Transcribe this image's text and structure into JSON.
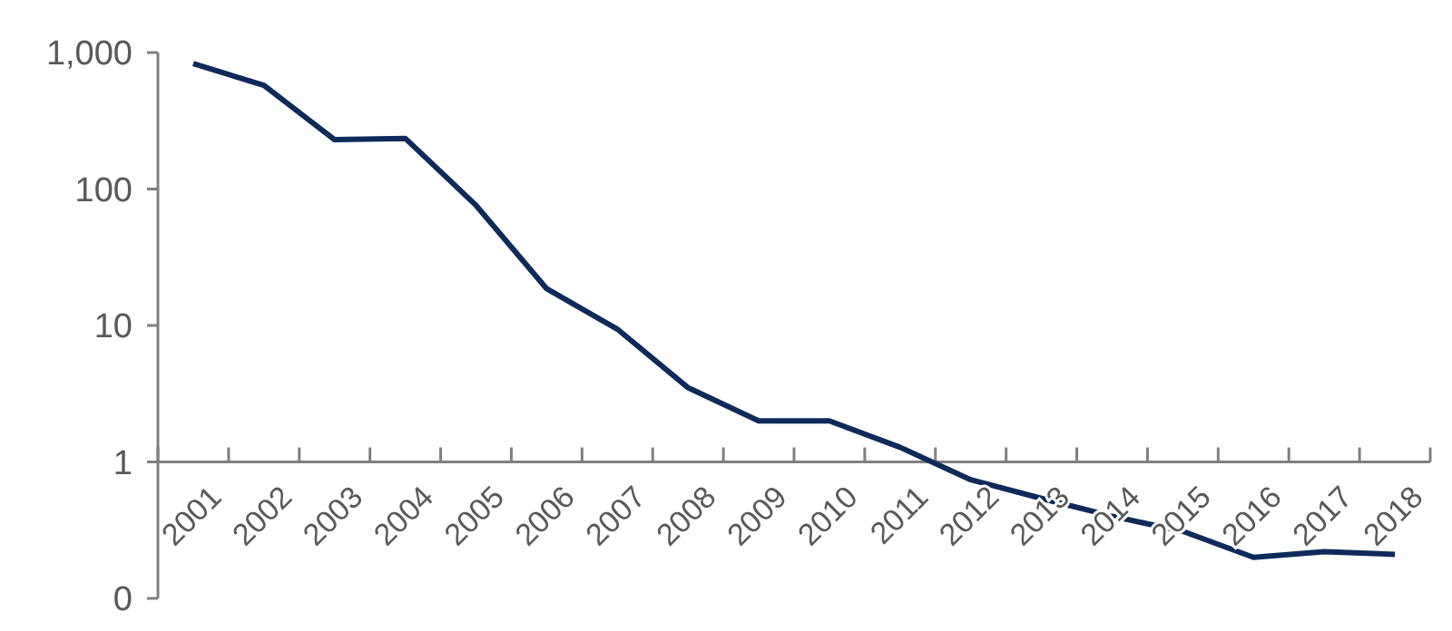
{
  "chart_data": {
    "type": "line",
    "categories": [
      "2001",
      "2002",
      "2003",
      "2004",
      "2005",
      "2006",
      "2007",
      "2008",
      "2009",
      "2010",
      "2011",
      "2012",
      "2013",
      "2014",
      "2015",
      "2016",
      "2017",
      "2018"
    ],
    "series": [
      {
        "color": "#0d2a5a",
        "values": [
          830,
          575,
          230,
          235,
          76,
          18.6,
          9.4,
          3.5,
          2.0,
          2.0,
          1.28,
          0.74,
          0.54,
          0.4,
          0.31,
          0.2,
          0.22,
          0.21
        ]
      }
    ],
    "log": true,
    "ylim": [
      0.1,
      1000
    ],
    "yticks": [
      {
        "value": 0.1,
        "label": "0"
      },
      {
        "value": 1,
        "label": "1"
      },
      {
        "value": 10,
        "label": "10"
      },
      {
        "value": 100,
        "label": "100"
      },
      {
        "value": 1000,
        "label": "1,000"
      }
    ],
    "grid": false,
    "marker": "none",
    "line_style": "solid"
  }
}
